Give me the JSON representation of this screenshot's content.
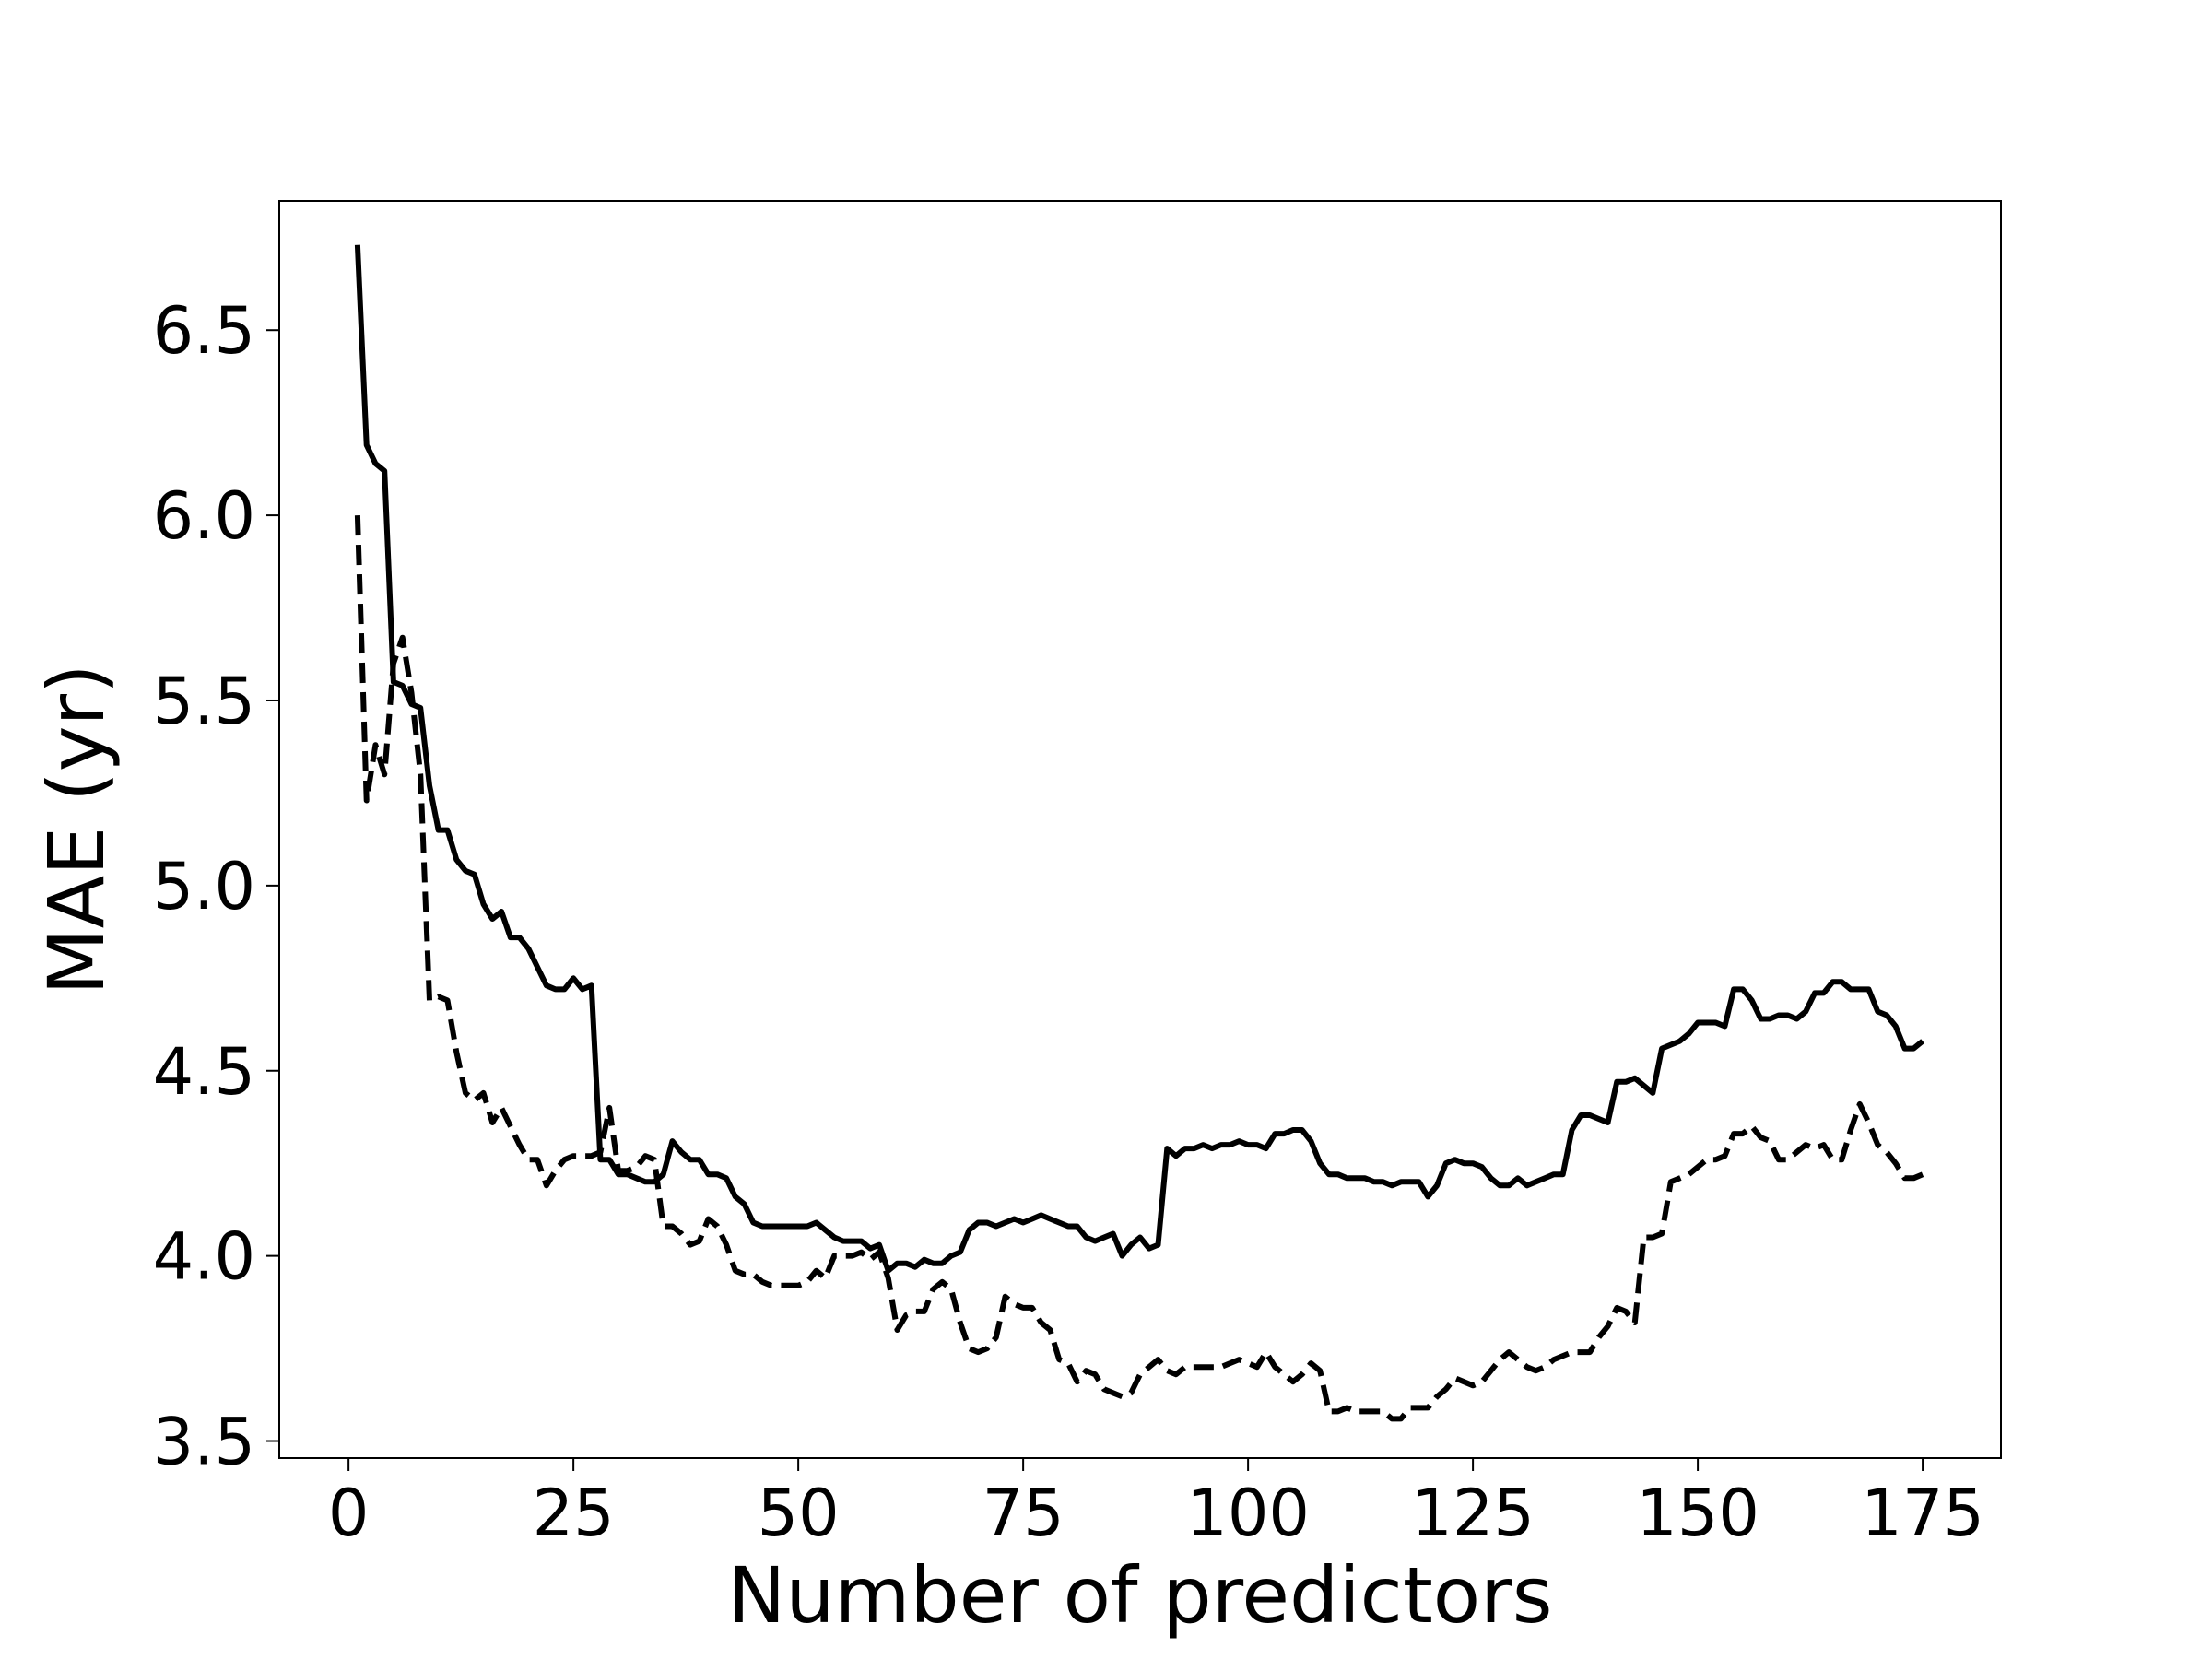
{
  "chart_data": {
    "type": "line",
    "x_label": "Number of predictors",
    "y_label": "MAE (yr)",
    "x": [
      1,
      2,
      3,
      4,
      5,
      6,
      7,
      8,
      9,
      10,
      11,
      12,
      13,
      14,
      15,
      16,
      17,
      18,
      19,
      20,
      21,
      22,
      23,
      24,
      25,
      26,
      27,
      28,
      29,
      30,
      31,
      32,
      33,
      34,
      35,
      36,
      37,
      38,
      39,
      40,
      41,
      42,
      43,
      44,
      45,
      46,
      47,
      48,
      49,
      50,
      51,
      52,
      53,
      54,
      55,
      56,
      57,
      58,
      59,
      60,
      61,
      62,
      63,
      64,
      65,
      66,
      67,
      68,
      69,
      70,
      71,
      72,
      73,
      74,
      75,
      76,
      77,
      78,
      79,
      80,
      81,
      82,
      83,
      84,
      85,
      86,
      87,
      88,
      89,
      90,
      91,
      92,
      93,
      94,
      95,
      96,
      97,
      98,
      99,
      100,
      101,
      102,
      103,
      104,
      105,
      106,
      107,
      108,
      109,
      110,
      111,
      112,
      113,
      114,
      115,
      116,
      117,
      118,
      119,
      120,
      121,
      122,
      123,
      124,
      125,
      126,
      127,
      128,
      129,
      130,
      131,
      132,
      133,
      134,
      135,
      136,
      137,
      138,
      139,
      140,
      141,
      142,
      143,
      144,
      145,
      146,
      147,
      148,
      149,
      150,
      151,
      152,
      153,
      154,
      155,
      156,
      157,
      158,
      159,
      160,
      161,
      162,
      163,
      164,
      165,
      166,
      167,
      168,
      169,
      170,
      171,
      172,
      173,
      174,
      175
    ],
    "series": [
      {
        "color": "#000000",
        "linestyle": "solid",
        "values": [
          6.73,
          6.19,
          6.14,
          6.12,
          5.55,
          5.54,
          5.49,
          5.48,
          5.27,
          5.15,
          5.15,
          5.07,
          5.04,
          5.03,
          4.95,
          4.91,
          4.93,
          4.86,
          4.86,
          4.83,
          4.78,
          4.73,
          4.72,
          4.72,
          4.75,
          4.72,
          4.73,
          4.26,
          4.26,
          4.22,
          4.22,
          4.21,
          4.2,
          4.2,
          4.22,
          4.31,
          4.28,
          4.26,
          4.26,
          4.22,
          4.22,
          4.21,
          4.16,
          4.14,
          4.09,
          4.08,
          4.08,
          4.08,
          4.08,
          4.08,
          4.08,
          4.09,
          4.07,
          4.05,
          4.04,
          4.04,
          4.04,
          4.02,
          4.03,
          3.96,
          3.98,
          3.98,
          3.97,
          3.99,
          3.98,
          3.98,
          4.0,
          4.01,
          4.07,
          4.09,
          4.09,
          4.08,
          4.09,
          4.1,
          4.09,
          4.1,
          4.11,
          4.1,
          4.09,
          4.08,
          4.08,
          4.05,
          4.04,
          4.05,
          4.06,
          4.0,
          4.03,
          4.05,
          4.02,
          4.03,
          4.29,
          4.27,
          4.29,
          4.29,
          4.3,
          4.29,
          4.3,
          4.3,
          4.31,
          4.3,
          4.3,
          4.29,
          4.33,
          4.33,
          4.34,
          4.34,
          4.31,
          4.25,
          4.22,
          4.22,
          4.21,
          4.21,
          4.21,
          4.2,
          4.2,
          4.19,
          4.2,
          4.2,
          4.2,
          4.16,
          4.19,
          4.25,
          4.26,
          4.25,
          4.25,
          4.24,
          4.21,
          4.19,
          4.19,
          4.21,
          4.19,
          4.2,
          4.21,
          4.22,
          4.22,
          4.34,
          4.38,
          4.38,
          4.37,
          4.36,
          4.47,
          4.47,
          4.48,
          4.46,
          4.44,
          4.56,
          4.57,
          4.58,
          4.6,
          4.63,
          4.63,
          4.63,
          4.62,
          4.72,
          4.72,
          4.69,
          4.64,
          4.64,
          4.65,
          4.65,
          4.64,
          4.66,
          4.71,
          4.71,
          4.74,
          4.74,
          4.72,
          4.72,
          4.72,
          4.66,
          4.65,
          4.62,
          4.56,
          4.56,
          4.58
        ]
      },
      {
        "color": "#000000",
        "linestyle": "dashed",
        "values": [
          6.0,
          5.23,
          5.38,
          5.3,
          5.6,
          5.67,
          5.52,
          5.3,
          4.69,
          4.7,
          4.69,
          4.55,
          4.44,
          4.42,
          4.44,
          4.36,
          4.4,
          4.35,
          4.3,
          4.26,
          4.26,
          4.19,
          4.23,
          4.26,
          4.27,
          4.27,
          4.27,
          4.28,
          4.4,
          4.23,
          4.23,
          4.24,
          4.27,
          4.26,
          4.08,
          4.08,
          4.06,
          4.03,
          4.04,
          4.1,
          4.08,
          4.03,
          3.96,
          3.95,
          3.95,
          3.93,
          3.92,
          3.92,
          3.92,
          3.92,
          3.93,
          3.96,
          3.94,
          4.0,
          4.0,
          4.0,
          4.01,
          3.99,
          4.01,
          3.94,
          3.8,
          3.84,
          3.85,
          3.85,
          3.91,
          3.93,
          3.91,
          3.82,
          3.75,
          3.74,
          3.75,
          3.78,
          3.89,
          3.87,
          3.86,
          3.86,
          3.82,
          3.8,
          3.72,
          3.71,
          3.66,
          3.69,
          3.68,
          3.64,
          3.63,
          3.62,
          3.63,
          3.68,
          3.7,
          3.72,
          3.69,
          3.68,
          3.7,
          3.7,
          3.7,
          3.7,
          3.7,
          3.71,
          3.72,
          3.71,
          3.7,
          3.74,
          3.7,
          3.68,
          3.66,
          3.68,
          3.71,
          3.69,
          3.58,
          3.58,
          3.59,
          3.58,
          3.58,
          3.58,
          3.58,
          3.56,
          3.56,
          3.59,
          3.59,
          3.59,
          3.62,
          3.64,
          3.67,
          3.66,
          3.65,
          3.66,
          3.69,
          3.72,
          3.74,
          3.72,
          3.7,
          3.69,
          3.7,
          3.72,
          3.73,
          3.74,
          3.74,
          3.74,
          3.78,
          3.81,
          3.86,
          3.85,
          3.82,
          4.05,
          4.05,
          4.06,
          4.2,
          4.21,
          4.22,
          4.24,
          4.26,
          4.26,
          4.27,
          4.33,
          4.33,
          4.35,
          4.32,
          4.31,
          4.26,
          4.26,
          4.28,
          4.3,
          4.29,
          4.3,
          4.26,
          4.26,
          4.34,
          4.41,
          4.36,
          4.3,
          4.28,
          4.25,
          4.21,
          4.21,
          4.22
        ]
      }
    ],
    "xlim": [
      -7.7,
      183.7
    ],
    "ylim": [
      3.454,
      6.849
    ],
    "xticks": [
      0,
      25,
      50,
      75,
      100,
      125,
      150,
      175
    ],
    "yticks": [
      3.5,
      {
        "value": 4,
        "label": "4.0"
      },
      4.5,
      {
        "value": 5,
        "label": "5.0"
      },
      5.5,
      {
        "value": 6,
        "label": "6.0"
      },
      6.5
    ],
    "grid": false
  }
}
